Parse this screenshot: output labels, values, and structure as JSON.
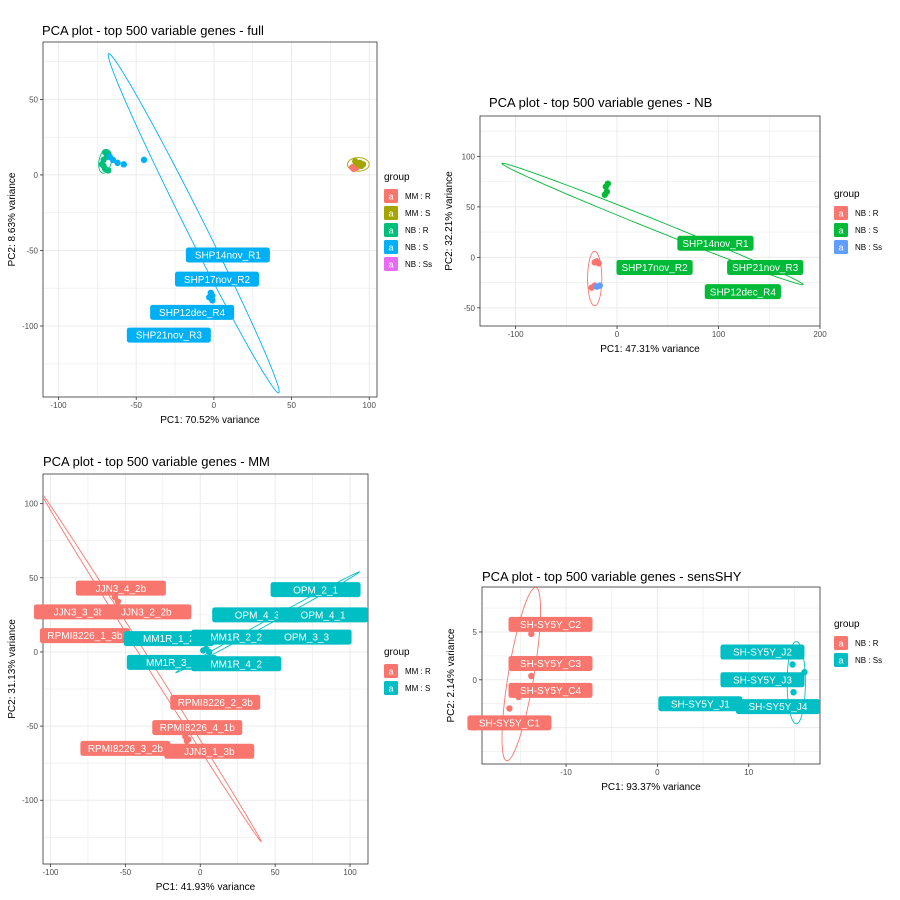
{
  "chart_data": [
    {
      "type": "scatter",
      "title": "PCA plot - top 500 variable genes - full",
      "xlabel": "PC1: 70.52% variance",
      "ylabel": "PC2: 8.63% variance",
      "xlim": [
        -110,
        105
      ],
      "ylim": [
        -147,
        88
      ],
      "xticks": [
        -100,
        -50,
        0,
        50,
        100
      ],
      "yticks": [
        -100,
        -50,
        0,
        50
      ],
      "grid": true,
      "legend": {
        "title": "group",
        "position": "right",
        "entries": [
          {
            "name": "MM : R",
            "color": "#F8766D"
          },
          {
            "name": "MM : S",
            "color": "#A3A500"
          },
          {
            "name": "NB : R",
            "color": "#00BF7D"
          },
          {
            "name": "NB : S",
            "color": "#00B0F6"
          },
          {
            "name": "NB : Ss",
            "color": "#E76BF3"
          }
        ]
      },
      "groups": [
        {
          "name": "MM : R",
          "color": "#F8766D",
          "points": [
            [
              89,
              5
            ],
            [
              90,
              4
            ],
            [
              91,
              6
            ],
            [
              92,
              5
            ]
          ],
          "ellipse": {
            "cx": 90.5,
            "cy": 5,
            "a": 3,
            "b": 1.5,
            "angle": 0
          }
        },
        {
          "name": "MM : S",
          "color": "#A3A500",
          "points": [
            [
              92,
              8
            ],
            [
              93,
              7
            ],
            [
              94,
              8
            ],
            [
              95,
              6
            ],
            [
              96,
              7
            ],
            [
              91,
              9
            ]
          ],
          "ellipse": {
            "cx": 93,
            "cy": 7,
            "a": 7,
            "b": 4.5,
            "angle": 0
          }
        },
        {
          "name": "NB : R",
          "color": "#00BF7D",
          "points": [
            [
              -70,
              15
            ],
            [
              -69,
              12
            ],
            [
              -68,
              14
            ],
            [
              -71,
              10
            ],
            [
              -72,
              7
            ],
            [
              -70,
              4
            ],
            [
              -71,
              6
            ],
            [
              -68,
              3
            ]
          ],
          "ellipse": {
            "cx": -70,
            "cy": 9,
            "a": 8,
            "b": 4,
            "angle": 80
          }
        },
        {
          "name": "NB : S",
          "color": "#00B0F6",
          "points": [
            [
              -67,
              12
            ],
            [
              -65,
              10
            ],
            [
              -62,
              8
            ],
            [
              -58,
              7
            ],
            [
              -45,
              10
            ],
            [
              -2,
              -78
            ],
            [
              -1,
              -80
            ],
            [
              -3,
              -81
            ],
            [
              -1,
              -83
            ]
          ],
          "ellipse": {
            "cx": -13,
            "cy": -32,
            "a": 125,
            "b": 6,
            "angle": -64
          }
        }
      ],
      "labels": [
        {
          "text": "SHP14nov_R1",
          "group": "NB : S",
          "x": 9,
          "y": -53
        },
        {
          "text": "SHP17nov_R2",
          "group": "NB : S",
          "x": 2,
          "y": -69
        },
        {
          "text": "SHP12dec_R4",
          "group": "NB : S",
          "x": -14,
          "y": -91
        },
        {
          "text": "SHP21nov_R3",
          "group": "NB : S",
          "x": -29,
          "y": -106
        }
      ]
    },
    {
      "type": "scatter",
      "title": "PCA plot - top 500 variable genes - NB",
      "xlabel": "PC1: 47.31% variance",
      "ylabel": "PC2: 32.21% variance",
      "xlim": [
        -135,
        200
      ],
      "ylim": [
        -68,
        140
      ],
      "xticks": [
        -100,
        0,
        100,
        200
      ],
      "yticks": [
        -50,
        0,
        50,
        100
      ],
      "grid": true,
      "legend": {
        "title": "group",
        "position": "right",
        "entries": [
          {
            "name": "NB : R",
            "color": "#F8766D"
          },
          {
            "name": "NB : S",
            "color": "#00BA38"
          },
          {
            "name": "NB : Ss",
            "color": "#619CFF"
          }
        ]
      },
      "groups": [
        {
          "name": "NB : R",
          "color": "#F8766D",
          "points": [
            [
              -22,
              -5
            ],
            [
              -20,
              -4
            ],
            [
              -18,
              -6
            ],
            [
              -22,
              -28
            ],
            [
              -25,
              -30
            ]
          ],
          "ellipse": {
            "cx": -22,
            "cy": -21,
            "a": 27,
            "b": 7,
            "angle": 90
          }
        },
        {
          "name": "NB : S",
          "color": "#00BA38",
          "points": [
            [
              -12,
              62
            ],
            [
              -10,
              65
            ],
            [
              -11,
              70
            ],
            [
              -9,
              73
            ],
            [
              112,
              -8
            ],
            [
              113,
              -9
            ],
            [
              114,
              -8
            ]
          ],
          "ellipse": {
            "cx": 35,
            "cy": 33,
            "a": 160,
            "b": 5,
            "angle": -22
          }
        },
        {
          "name": "NB : Ss",
          "color": "#619CFF",
          "points": [
            [
              -20,
              -29
            ],
            [
              -17,
              -28
            ]
          ],
          "ellipse": {
            "cx": -18,
            "cy": -28,
            "a": 2,
            "b": 1.5,
            "angle": 0
          }
        }
      ],
      "labels": [
        {
          "text": "SHP14nov_R1",
          "group": "NB : S",
          "x": 97,
          "y": 14
        },
        {
          "text": "SHP17nov_R2",
          "group": "NB : S",
          "x": 37,
          "y": -10
        },
        {
          "text": "SHP21nov_R3",
          "group": "NB : S",
          "x": 146,
          "y": -10
        },
        {
          "text": "SHP12dec_R4",
          "group": "NB : S",
          "x": 124,
          "y": -34
        }
      ]
    },
    {
      "type": "scatter",
      "title": "PCA plot - top 500 variable genes - MM",
      "xlabel": "PC1: 41.93% variance",
      "ylabel": "PC2: 31.13% variance",
      "xlim": [
        -105,
        112
      ],
      "ylim": [
        -143,
        120
      ],
      "xticks": [
        -100,
        -50,
        0,
        50,
        100
      ],
      "yticks": [
        -100,
        -50,
        0,
        50,
        100
      ],
      "grid": true,
      "legend": {
        "title": "group",
        "position": "right",
        "entries": [
          {
            "name": "MM : R",
            "color": "#F8766D"
          },
          {
            "name": "MM : S",
            "color": "#00BFC4"
          }
        ]
      },
      "groups": [
        {
          "name": "MM : R",
          "color": "#F8766D",
          "points": [
            [
              -57,
              37
            ],
            [
              -55,
              34
            ],
            [
              -10,
              -57
            ],
            [
              -8,
              -59
            ],
            [
              -9,
              -60
            ]
          ],
          "ellipse": {
            "cx": -33,
            "cy": -10,
            "a": 139,
            "b": 2,
            "angle": -58
          }
        },
        {
          "name": "MM : S",
          "color": "#00BFC4",
          "points": [
            [
              2,
              1
            ],
            [
              4,
              2
            ],
            [
              6,
              0
            ],
            [
              58,
              24
            ],
            [
              61,
              25
            ],
            [
              60,
              26
            ]
          ],
          "ellipse": {
            "cx": 45,
            "cy": 20,
            "a": 70,
            "b": 1.5,
            "angle": 29
          }
        }
      ],
      "labels": [
        {
          "text": "JJN3_4_2b",
          "group": "MM : R",
          "x": -53,
          "y": 43
        },
        {
          "text": "JJN3_3_3b",
          "group": "MM : R",
          "x": -81,
          "y": 27
        },
        {
          "text": "JJN3_2_2b",
          "group": "MM : R",
          "x": -36,
          "y": 27
        },
        {
          "text": "RPMI8226_1_3b",
          "group": "MM : R",
          "x": -77,
          "y": 11
        },
        {
          "text": "MM1R_1_2",
          "group": "MM : S",
          "x": -21,
          "y": 9
        },
        {
          "text": "MM1R_2_2",
          "group": "MM : S",
          "x": 24,
          "y": 10
        },
        {
          "text": "MM1R_3_1",
          "group": "MM : S",
          "x": -19,
          "y": -7
        },
        {
          "text": "MM1R_4_2",
          "group": "MM : S",
          "x": 24,
          "y": -8
        },
        {
          "text": "OPM_2_1",
          "group": "MM : S",
          "x": 77,
          "y": 42
        },
        {
          "text": "OPM_4_3",
          "group": "MM : S",
          "x": 38,
          "y": 25
        },
        {
          "text": "OPM_4_1",
          "group": "MM : S",
          "x": 82,
          "y": 25
        },
        {
          "text": "OPM_3_3",
          "group": "MM : S",
          "x": 71,
          "y": 10
        },
        {
          "text": "RPMI8226_2_3b",
          "group": "MM : R",
          "x": 10,
          "y": -34
        },
        {
          "text": "RPMI8226_4_1b",
          "group": "MM : R",
          "x": -2,
          "y": -51
        },
        {
          "text": "RPMI8226_3_2b",
          "group": "MM : R",
          "x": -50,
          "y": -65
        },
        {
          "text": "JJN3_1_3b",
          "group": "MM : R",
          "x": 6,
          "y": -67
        }
      ]
    },
    {
      "type": "scatter",
      "title": "PCA plot - top 500 variable genes - sensSHY",
      "xlabel": "PC1: 93.37% variance",
      "ylabel": "PC2: 2.14% variance",
      "xlim": [
        -19.2,
        17.8
      ],
      "ylim": [
        -8.8,
        9.7
      ],
      "xticks": [
        -10,
        0,
        10
      ],
      "yticks": [
        -5,
        0,
        5
      ],
      "grid": true,
      "legend": {
        "title": "group",
        "position": "right",
        "entries": [
          {
            "name": "NB : R",
            "color": "#F8766D"
          },
          {
            "name": "NB : Ss",
            "color": "#00BFC4"
          }
        ]
      },
      "groups": [
        {
          "name": "NB : R",
          "color": "#F8766D",
          "points": [
            [
              -13.8,
              4.8
            ],
            [
              -13.8,
              0.4
            ],
            [
              -15.2,
              -1.8
            ],
            [
              -16.2,
              -3.0
            ]
          ],
          "ellipse": {
            "cx": -14.9,
            "cy": 0.6,
            "a": 9.2,
            "b": 1.4,
            "angle": 80
          }
        },
        {
          "name": "NB : Ss",
          "color": "#00BFC4",
          "points": [
            [
              14.8,
              1.6
            ],
            [
              16.1,
              0.8
            ],
            [
              14.9,
              -1.3
            ],
            [
              13.7,
              -2.4
            ]
          ],
          "ellipse": {
            "cx": 15.2,
            "cy": -0.3,
            "a": 4.3,
            "b": 1.0,
            "angle": 90
          }
        }
      ],
      "labels": [
        {
          "text": "SH-SY5Y_C2",
          "group": "NB : R",
          "x": -11.7,
          "y": 5.8
        },
        {
          "text": "SH-SY5Y_C3",
          "group": "NB : R",
          "x": -11.7,
          "y": 1.7
        },
        {
          "text": "SH-SY5Y_C4",
          "group": "NB : R",
          "x": -11.7,
          "y": -1.1
        },
        {
          "text": "SH-SY5Y_C1",
          "group": "NB : R",
          "x": -16.2,
          "y": -4.5
        },
        {
          "text": "SH-SY5Y_J2",
          "group": "NB : Ss",
          "x": 11.5,
          "y": 2.9
        },
        {
          "text": "SH-SY5Y_J3",
          "group": "NB : Ss",
          "x": 11.5,
          "y": 0.0
        },
        {
          "text": "SH-SY5Y_J1",
          "group": "NB : Ss",
          "x": 4.7,
          "y": -2.5
        },
        {
          "text": "SH-SY5Y_J4",
          "group": "NB : Ss",
          "x": 13.2,
          "y": -2.8
        }
      ]
    }
  ]
}
